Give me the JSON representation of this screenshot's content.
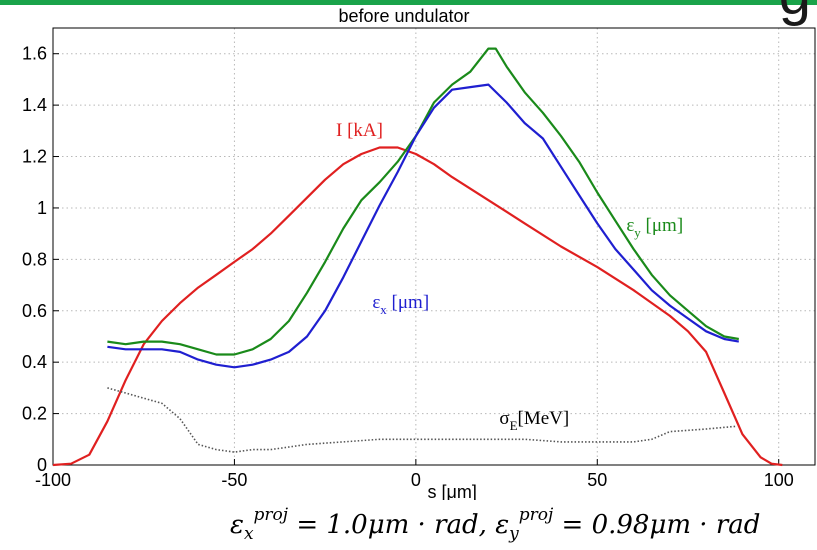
{
  "header": {
    "corner_glyph": "g"
  },
  "colors": {
    "top_bar": "#1aa34a",
    "current": "#e02020",
    "eps_x": "#1f1fd0",
    "eps_y": "#1a8a1a",
    "sigma_e": "#555555",
    "grid": "#b8b8b8"
  },
  "chart_data": {
    "type": "line",
    "title": "before undulator",
    "xlabel": "s [μm]",
    "ylabel": "",
    "xlim": [
      -100,
      110
    ],
    "ylim": [
      0,
      1.7
    ],
    "xticks": [
      -100,
      -50,
      0,
      50,
      100
    ],
    "xtick_labels": [
      "-100",
      "-50",
      "0",
      "50",
      "100"
    ],
    "yticks": [
      0,
      0.2,
      0.4,
      0.6,
      0.8,
      1,
      1.2,
      1.4,
      1.6
    ],
    "ytick_labels": [
      "0",
      "0.2",
      "0.4",
      "0.6",
      "0.8",
      "1",
      "1.2",
      "1.4",
      "1.6"
    ],
    "grid": true,
    "series": [
      {
        "name": "I [kA]",
        "color": "#e02020",
        "x": [
          -100,
          -95,
          -90,
          -85,
          -80,
          -75,
          -70,
          -65,
          -60,
          -55,
          -50,
          -45,
          -40,
          -35,
          -30,
          -25,
          -20,
          -15,
          -10,
          -5,
          0,
          5,
          10,
          20,
          30,
          40,
          50,
          60,
          70,
          75,
          80,
          85,
          90,
          95,
          98,
          101
        ],
        "y": [
          0,
          0.005,
          0.04,
          0.17,
          0.33,
          0.47,
          0.56,
          0.63,
          0.69,
          0.74,
          0.79,
          0.84,
          0.9,
          0.97,
          1.04,
          1.11,
          1.17,
          1.21,
          1.235,
          1.235,
          1.21,
          1.17,
          1.12,
          1.03,
          0.94,
          0.85,
          0.77,
          0.68,
          0.58,
          0.52,
          0.44,
          0.28,
          0.12,
          0.03,
          0.005,
          0
        ]
      },
      {
        "name": "ε_y [μm]",
        "color": "#1a8a1a",
        "x": [
          -85,
          -80,
          -75,
          -70,
          -65,
          -60,
          -55,
          -50,
          -45,
          -40,
          -35,
          -30,
          -25,
          -20,
          -15,
          -10,
          -5,
          0,
          5,
          10,
          15,
          20,
          22,
          25,
          30,
          35,
          40,
          45,
          50,
          55,
          60,
          65,
          70,
          75,
          80,
          85,
          89
        ],
        "y": [
          0.48,
          0.47,
          0.48,
          0.48,
          0.47,
          0.45,
          0.43,
          0.43,
          0.45,
          0.49,
          0.56,
          0.67,
          0.79,
          0.92,
          1.03,
          1.1,
          1.18,
          1.28,
          1.41,
          1.48,
          1.53,
          1.62,
          1.62,
          1.55,
          1.45,
          1.37,
          1.28,
          1.18,
          1.06,
          0.95,
          0.84,
          0.74,
          0.66,
          0.6,
          0.54,
          0.5,
          0.49
        ]
      },
      {
        "name": "ε_x [μm]",
        "color": "#1f1fd0",
        "x": [
          -85,
          -80,
          -75,
          -70,
          -65,
          -60,
          -55,
          -50,
          -45,
          -40,
          -35,
          -30,
          -25,
          -20,
          -15,
          -10,
          -5,
          0,
          5,
          10,
          15,
          20,
          25,
          30,
          35,
          40,
          45,
          50,
          55,
          60,
          65,
          70,
          75,
          80,
          85,
          89
        ],
        "y": [
          0.46,
          0.45,
          0.45,
          0.45,
          0.44,
          0.41,
          0.39,
          0.38,
          0.39,
          0.41,
          0.44,
          0.5,
          0.6,
          0.73,
          0.87,
          1.01,
          1.14,
          1.28,
          1.39,
          1.46,
          1.47,
          1.48,
          1.41,
          1.33,
          1.27,
          1.16,
          1.05,
          0.94,
          0.84,
          0.76,
          0.68,
          0.62,
          0.57,
          0.52,
          0.49,
          0.48
        ]
      },
      {
        "name": "σ_E[MeV]",
        "color": "#555555",
        "dash": true,
        "x": [
          -85,
          -80,
          -75,
          -70,
          -65,
          -60,
          -55,
          -50,
          -45,
          -40,
          -30,
          -20,
          -10,
          0,
          10,
          20,
          30,
          40,
          50,
          60,
          65,
          70,
          80,
          88
        ],
        "y": [
          0.3,
          0.28,
          0.26,
          0.24,
          0.18,
          0.08,
          0.06,
          0.05,
          0.06,
          0.06,
          0.08,
          0.09,
          0.1,
          0.1,
          0.1,
          0.1,
          0.1,
          0.09,
          0.09,
          0.09,
          0.1,
          0.13,
          0.14,
          0.15
        ]
      }
    ],
    "annotations": [
      {
        "id": "current",
        "base": "I [kA]",
        "sub": "",
        "x": -22,
        "y": 1.28,
        "color": "#e02020"
      },
      {
        "id": "eps-y",
        "base": "ε",
        "sub": "y",
        "tail": " [μm]",
        "x": 58,
        "y": 0.91,
        "color": "#1a8a1a"
      },
      {
        "id": "eps-x",
        "base": "ε",
        "sub": "x",
        "tail": " [μm]",
        "x": -12,
        "y": 0.61,
        "color": "#1f1fd0"
      },
      {
        "id": "sigma-e",
        "base": "σ",
        "sub": "E",
        "tail": "[MeV]",
        "x": 23,
        "y": 0.16,
        "color": "#000000"
      }
    ]
  },
  "formula": {
    "eps_x_base": "ε",
    "eps_x_sub": "x",
    "eps_x_sup": "proj",
    "eps_x_value": " = 1.0μm · rad, ",
    "eps_y_base": "ε",
    "eps_y_sub": "y",
    "eps_y_sup": "proj",
    "eps_y_value": " = 0.98μm · rad"
  }
}
